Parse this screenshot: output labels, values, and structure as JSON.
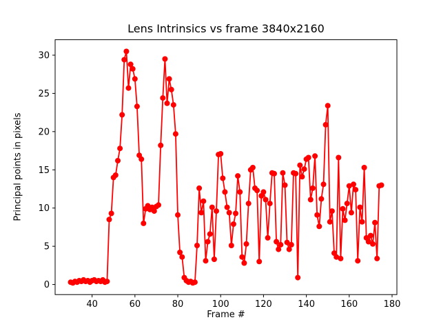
{
  "chart_data": {
    "type": "line",
    "title": "Lens Intrinsics vs frame 3840x2160",
    "xlabel": "Frame #",
    "ylabel": "Principal points in pixels",
    "line_color": "#ff0000",
    "marker": "circle",
    "grid": false,
    "legend": null,
    "xlim": [
      22.75,
      182.25
    ],
    "ylim": [
      -1.32,
      32.02
    ],
    "x_ticks": [
      40,
      60,
      80,
      100,
      120,
      140,
      160,
      180
    ],
    "y_ticks": [
      0,
      5,
      10,
      15,
      20,
      25,
      30
    ],
    "x": [
      30,
      31,
      32,
      33,
      34,
      35,
      36,
      37,
      38,
      39,
      40,
      41,
      42,
      43,
      44,
      45,
      46,
      47,
      48,
      49,
      50,
      51,
      52,
      53,
      54,
      55,
      56,
      57,
      58,
      59,
      60,
      61,
      62,
      63,
      64,
      65,
      66,
      67,
      68,
      69,
      70,
      71,
      72,
      73,
      74,
      75,
      76,
      77,
      78,
      79,
      80,
      81,
      82,
      83,
      84,
      85,
      86,
      87,
      88,
      89,
      90,
      91,
      92,
      93,
      94,
      95,
      96,
      97,
      98,
      99,
      100,
      101,
      102,
      103,
      104,
      105,
      106,
      107,
      108,
      109,
      110,
      111,
      112,
      113,
      114,
      115,
      116,
      117,
      118,
      119,
      120,
      121,
      122,
      123,
      124,
      125,
      126,
      127,
      128,
      129,
      130,
      131,
      132,
      133,
      134,
      135,
      136,
      137,
      138,
      139,
      140,
      141,
      142,
      143,
      144,
      145,
      146,
      147,
      148,
      149,
      150,
      151,
      152,
      153,
      154,
      155,
      156,
      157,
      158,
      159,
      160,
      161,
      162,
      163,
      164,
      165,
      166,
      167,
      168,
      169,
      170,
      171,
      172,
      173,
      174,
      175
    ],
    "y": [
      0.3,
      0.2,
      0.4,
      0.3,
      0.5,
      0.4,
      0.6,
      0.4,
      0.5,
      0.3,
      0.5,
      0.6,
      0.4,
      0.5,
      0.4,
      0.6,
      0.3,
      0.4,
      8.5,
      9.3,
      14.0,
      14.3,
      16.2,
      17.8,
      22.2,
      29.4,
      30.5,
      25.7,
      28.8,
      28.2,
      26.9,
      23.3,
      16.9,
      16.4,
      8.0,
      9.9,
      10.3,
      9.8,
      10.1,
      9.6,
      10.2,
      10.4,
      18.2,
      24.4,
      29.5,
      23.7,
      26.9,
      25.5,
      23.5,
      19.7,
      9.1,
      4.2,
      3.6,
      0.9,
      0.5,
      0.3,
      0.4,
      0.2,
      0.3,
      5.1,
      12.6,
      9.4,
      10.9,
      3.1,
      5.6,
      6.6,
      10.1,
      3.3,
      9.6,
      17.0,
      17.1,
      13.9,
      12.1,
      10.1,
      9.4,
      5.1,
      7.9,
      9.3,
      14.2,
      12.1,
      3.6,
      2.8,
      5.3,
      10.6,
      15.0,
      15.3,
      12.6,
      12.3,
      3.0,
      11.6,
      12.1,
      11.1,
      6.1,
      10.6,
      14.6,
      14.5,
      5.6,
      4.6,
      5.2,
      14.6,
      13.0,
      5.5,
      4.6,
      5.2,
      14.6,
      14.5,
      0.9,
      15.6,
      14.1,
      15.1,
      16.4,
      16.6,
      11.1,
      12.6,
      16.8,
      9.1,
      7.6,
      11.2,
      13.1,
      20.9,
      23.4,
      8.2,
      9.6,
      4.1,
      3.6,
      16.6,
      3.4,
      9.9,
      8.4,
      10.6,
      12.9,
      9.4,
      13.1,
      12.4,
      3.1,
      10.1,
      8.2,
      15.3,
      6.1,
      5.6,
      6.4,
      5.3,
      8.1,
      3.4,
      12.9,
      13.0
    ]
  }
}
